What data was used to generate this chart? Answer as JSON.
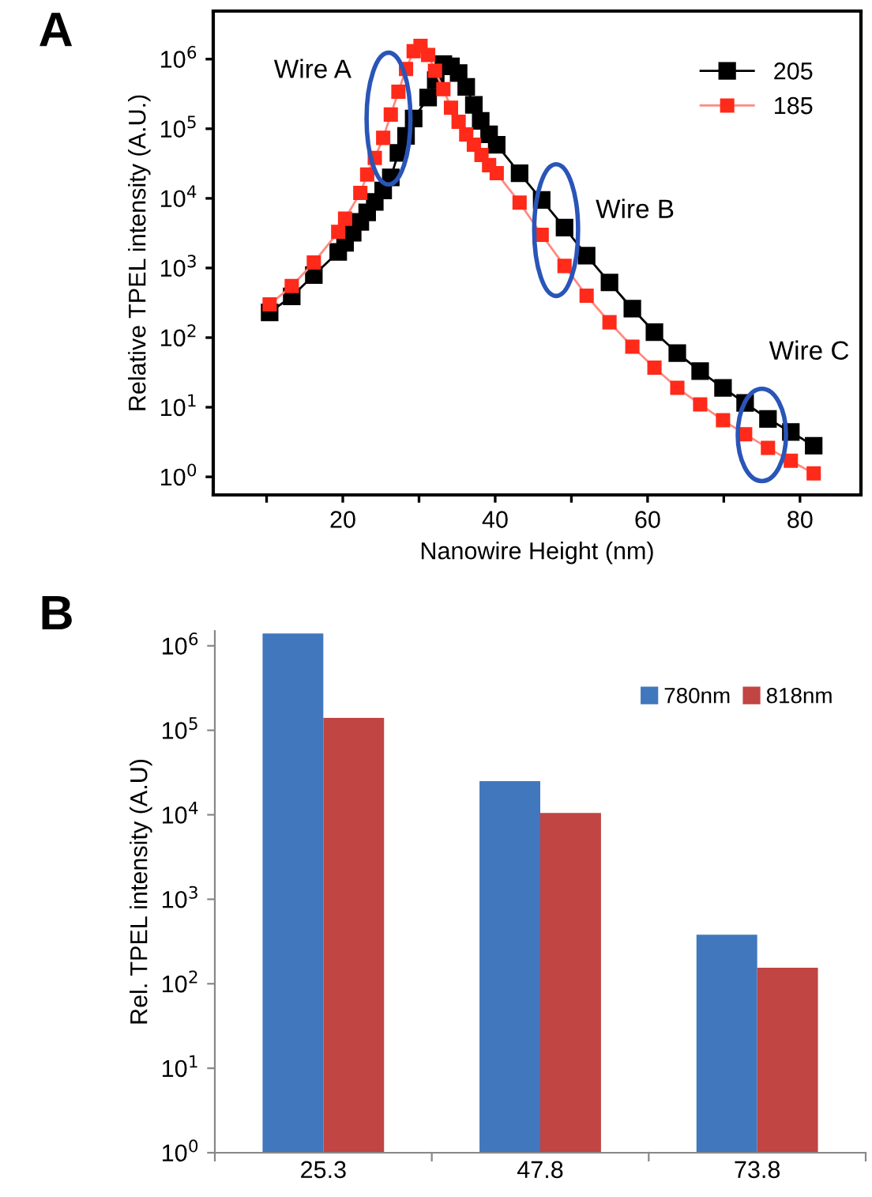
{
  "chart_data": [
    {
      "type": "line",
      "xlabel": "Nanowire Height (nm)",
      "ylabel": "Relative TPEL intensity (A.U.)",
      "log": "y",
      "marker": "square",
      "line_style": "solid",
      "legend": "top right",
      "grid": false,
      "xlim": [
        3,
        88
      ],
      "xticks": [
        {
          "value": 10,
          "label": null
        },
        20,
        {
          "value": 30,
          "label": null
        },
        40,
        {
          "value": 50,
          "label": null
        },
        60,
        {
          "value": 70,
          "label": null
        },
        80
      ],
      "ylim": [
        0.55,
        4900000
      ],
      "yticks": [
        {
          "value": 1,
          "label": "10$^{0}$"
        },
        {
          "value": 10,
          "label": "10$^{1}$"
        },
        {
          "value": 100,
          "label": "10$^{2}$"
        },
        {
          "value": 1000,
          "label": "10$^{3}$"
        },
        {
          "value": 10000,
          "label": "10$^{4}$"
        },
        {
          "value": 100000,
          "label": "10$^{5}$"
        },
        {
          "value": 1000000,
          "label": "10$^{6}$"
        }
      ],
      "annotations": [
        "A",
        {
          "text": "Wire A",
          "x": 26,
          "y": 140000
        },
        {
          "text": "Wire B",
          "x": 48,
          "y": 3500
        },
        {
          "text": "Wire C",
          "x": 75,
          "y": 4
        }
      ],
      "series": [
        {
          "name": "205",
          "color": "#000000",
          "x": [
            10.4,
            13.3,
            16.2,
            19.4,
            20.3,
            21.3,
            22.3,
            23.2,
            24.2,
            25.3,
            26.3,
            27.3,
            28.3,
            29.3,
            31.2,
            32.2,
            33.2,
            34.2,
            35.2,
            36.2,
            37.2,
            38.1,
            39.2,
            40.2,
            43.2,
            46.1,
            49.1,
            52.0,
            55.0,
            58.0,
            60.9,
            63.9,
            66.9,
            69.9,
            72.8,
            75.8,
            78.8,
            81.8
          ],
          "values": [
            230,
            390,
            790,
            1700,
            2300,
            3200,
            4600,
            6300,
            8900,
            13000,
            20000,
            45000,
            79000,
            140000,
            280000,
            500000,
            850000,
            790000,
            630000,
            400000,
            220000,
            130000,
            83000,
            59000,
            23000,
            9500,
            3800,
            1500,
            620,
            260,
            120,
            60,
            33,
            19,
            11.5,
            6.8,
            4.4,
            2.8
          ]
        },
        {
          "name": "185",
          "color": "#ff2a1a",
          "x": [
            10.4,
            13.3,
            16.2,
            19.4,
            20.3,
            22.3,
            23.2,
            24.2,
            25.3,
            26.3,
            27.3,
            28.3,
            29.3,
            30.2,
            31.2,
            32.1,
            33.2,
            34.2,
            35.2,
            36.2,
            37.2,
            38.2,
            39.2,
            40.2,
            43.2,
            46.1,
            49.1,
            52.0,
            55.0,
            58.0,
            60.9,
            63.9,
            66.9,
            69.9,
            72.8,
            75.8,
            78.8,
            81.8
          ],
          "values": [
            300,
            550,
            1200,
            3300,
            5100,
            12000,
            22000,
            38000,
            74000,
            160000,
            340000,
            720000,
            1300000,
            1550000,
            1150000,
            680000,
            370000,
            200000,
            126000,
            83000,
            59000,
            42000,
            30000,
            23000,
            8700,
            3000,
            1070,
            400,
            166,
            74,
            37,
            19,
            11,
            6.5,
            4.1,
            2.6,
            1.7,
            1.12
          ]
        }
      ]
    },
    {
      "type": "bar",
      "ylabel": "Rel. TPEL intensity (A.U)",
      "log": "y",
      "legend": "top right",
      "grid": false,
      "categories": [
        "25.3",
        "47.8",
        "73.8"
      ],
      "ylim": [
        1,
        1500000
      ],
      "yticks": [
        {
          "value": 1,
          "label": "10$^{0}$"
        },
        {
          "value": 10,
          "label": "10$^{1}$"
        },
        {
          "value": 100,
          "label": "10$^{2}$"
        },
        {
          "value": 1000,
          "label": "10$^{3}$"
        },
        {
          "value": 10000,
          "label": "10$^{4}$"
        },
        {
          "value": 100000,
          "label": "10$^{5}$"
        },
        {
          "value": 1000000,
          "label": "10$^{6}$"
        }
      ],
      "annotations": [
        "B"
      ],
      "series": [
        {
          "name": "780nm",
          "color": "#4177bd",
          "values": [
            1400000,
            25000,
            380
          ]
        },
        {
          "name": "818nm",
          "color": "#c04543",
          "values": [
            140000,
            10500,
            155
          ]
        }
      ]
    }
  ]
}
